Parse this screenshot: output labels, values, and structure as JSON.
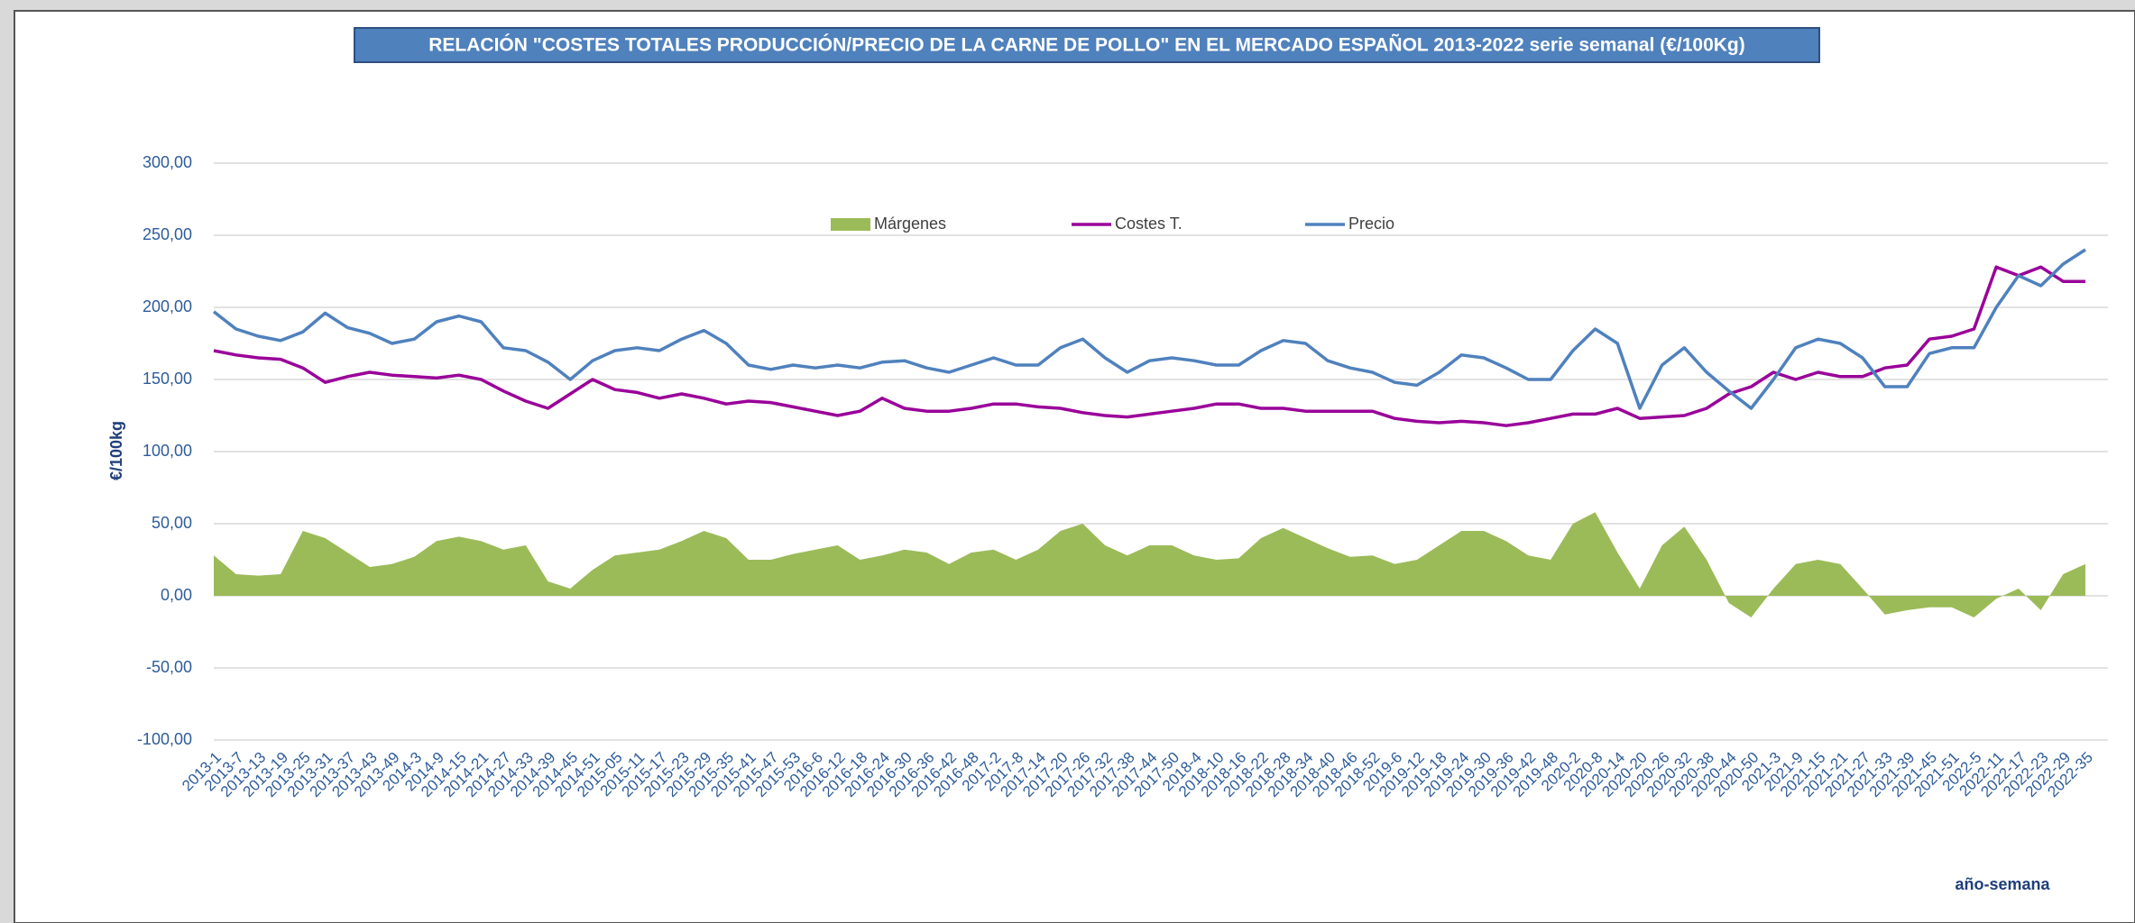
{
  "chart_data": {
    "type": "line",
    "title": "RELACIÓN \"COSTES TOTALES PRODUCCIÓN/PRECIO DE LA CARNE DE POLLO\" EN EL MERCADO ESPAÑOL 2013-2022 serie semanal (€/100Kg)",
    "y_label": "€/100kg",
    "x_label": "año-semana",
    "categories": [
      "2013-1",
      "2013-7",
      "2013-13",
      "2013-19",
      "2013-25",
      "2013-31",
      "2013-37",
      "2013-43",
      "2013-49",
      "2014-3",
      "2014-9",
      "2014-15",
      "2014-21",
      "2014-27",
      "2014-33",
      "2014-39",
      "2014-45",
      "2014-51",
      "2015-05",
      "2015-11",
      "2015-17",
      "2015-23",
      "2015-29",
      "2015-35",
      "2015-41",
      "2015-47",
      "2015-53",
      "2016-6",
      "2016-12",
      "2016-18",
      "2016-24",
      "2016-30",
      "2016-36",
      "2016-42",
      "2016-48",
      "2017-2",
      "2017-8",
      "2017-14",
      "2017-20",
      "2017-26",
      "2017-32",
      "2017-38",
      "2017-44",
      "2017-50",
      "2018-4",
      "2018-10",
      "2018-16",
      "2018-22",
      "2018-28",
      "2018-34",
      "2018-40",
      "2018-46",
      "2018-52",
      "2019-6",
      "2019-12",
      "2019-18",
      "2019-24",
      "2019-30",
      "2019-36",
      "2019-42",
      "2019-48",
      "2020-2",
      "2020-8",
      "2020-14",
      "2020-20",
      "2020-26",
      "2020-32",
      "2020-38",
      "2020-44",
      "2020-50",
      "2021-3",
      "2021-9",
      "2021-15",
      "2021-21",
      "2021-27",
      "2021-33",
      "2021-39",
      "2021-45",
      "2021-51",
      "2022-5",
      "2022-11",
      "2022-17",
      "2022-23",
      "2022-29",
      "2022-35"
    ],
    "series": [
      {
        "name": "Márgenes",
        "color": "#9bbb59",
        "style": "area",
        "values": [
          28,
          15,
          14,
          15,
          45,
          40,
          30,
          20,
          22,
          27,
          38,
          41,
          38,
          32,
          35,
          10,
          5,
          18,
          28,
          30,
          32,
          38,
          45,
          40,
          25,
          25,
          29,
          32,
          35,
          25,
          28,
          32,
          30,
          22,
          30,
          32,
          25,
          32,
          45,
          50,
          35,
          28,
          35,
          35,
          28,
          25,
          26,
          40,
          47,
          40,
          33,
          27,
          28,
          22,
          25,
          35,
          45,
          45,
          38,
          28,
          25,
          50,
          58,
          30,
          5,
          35,
          48,
          25,
          -5,
          -15,
          5,
          22,
          25,
          22,
          5,
          -13,
          -10,
          -8,
          -8,
          -15,
          -2,
          5,
          -10,
          15,
          22
        ]
      },
      {
        "name": "Costes T.",
        "color": "#990099",
        "style": "line",
        "values": [
          170,
          167,
          165,
          164,
          158,
          148,
          152,
          155,
          153,
          152,
          151,
          153,
          150,
          142,
          135,
          130,
          140,
          150,
          143,
          141,
          137,
          140,
          137,
          133,
          135,
          134,
          131,
          128,
          125,
          128,
          137,
          130,
          128,
          128,
          130,
          133,
          133,
          131,
          130,
          127,
          125,
          124,
          126,
          128,
          130,
          133,
          133,
          130,
          130,
          128,
          128,
          128,
          128,
          123,
          121,
          120,
          121,
          120,
          118,
          120,
          123,
          126,
          126,
          130,
          123,
          124,
          125,
          130,
          140,
          145,
          155,
          150,
          155,
          152,
          152,
          158,
          160,
          178,
          180,
          185,
          228,
          222,
          228,
          218,
          218
        ]
      },
      {
        "name": "Precio",
        "color": "#4f81bd",
        "style": "line",
        "values": [
          197,
          185,
          180,
          177,
          183,
          196,
          186,
          182,
          175,
          178,
          190,
          194,
          190,
          172,
          170,
          162,
          150,
          163,
          170,
          172,
          170,
          178,
          184,
          175,
          160,
          157,
          160,
          158,
          160,
          158,
          162,
          163,
          158,
          155,
          160,
          165,
          160,
          160,
          172,
          178,
          165,
          155,
          163,
          165,
          163,
          160,
          160,
          170,
          177,
          175,
          163,
          158,
          155,
          148,
          146,
          155,
          167,
          165,
          158,
          150,
          150,
          170,
          185,
          175,
          130,
          160,
          172,
          155,
          142,
          130,
          150,
          172,
          178,
          175,
          165,
          145,
          145,
          168,
          172,
          172,
          200,
          222,
          215,
          230,
          240
        ]
      }
    ],
    "ylim": [
      -100,
      300
    ],
    "yticks": [
      {
        "value": -100,
        "label": "-100,00"
      },
      {
        "value": -50,
        "label": "-50,00"
      },
      {
        "value": 0,
        "label": "0,00"
      },
      {
        "value": 50,
        "label": "50,00"
      },
      {
        "value": 100,
        "label": "100,00"
      },
      {
        "value": 150,
        "label": "150,00"
      },
      {
        "value": 200,
        "label": "200,00"
      },
      {
        "value": 250,
        "label": "250,00"
      },
      {
        "value": 300,
        "label": "300,00"
      }
    ],
    "grid": true,
    "legend": "top"
  }
}
